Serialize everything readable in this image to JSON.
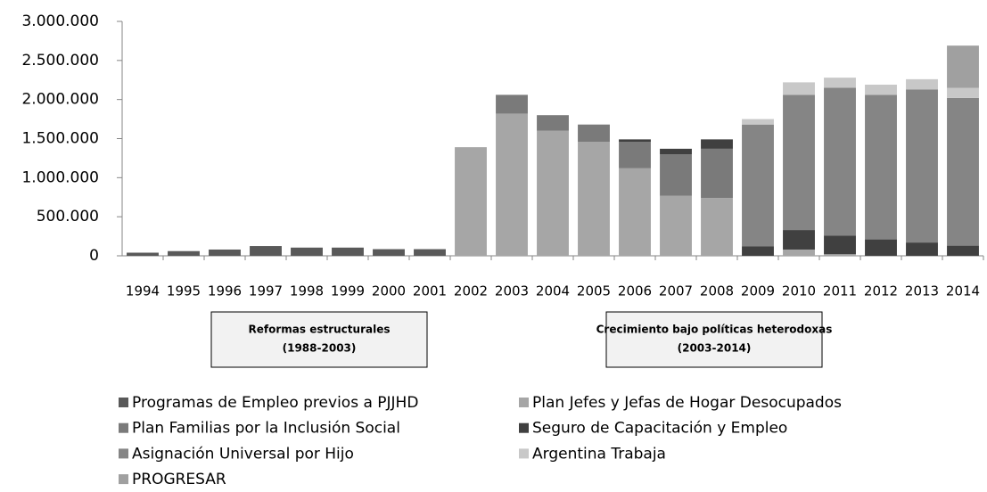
{
  "chart_data": {
    "type": "stacked-bar",
    "categories": [
      "1994",
      "1995",
      "1996",
      "1997",
      "1998",
      "1999",
      "2000",
      "2001",
      "2002",
      "2003",
      "2004",
      "2005",
      "2006",
      "2007",
      "2008",
      "2009",
      "2010",
      "2011",
      "2012",
      "2013",
      "2014"
    ],
    "series": [
      {
        "name": "Programas de Empleo previos a PJJHD",
        "color": "#595959",
        "values": [
          40000,
          60000,
          80000,
          125000,
          105000,
          105000,
          85000,
          85000,
          0,
          0,
          0,
          0,
          0,
          0,
          0,
          0,
          0,
          0,
          0,
          0,
          0
        ]
      },
      {
        "name": "Plan Jefes y Jefas de Hogar Desocupados",
        "color": "#a6a6a6",
        "values": [
          0,
          0,
          0,
          0,
          0,
          0,
          0,
          0,
          1390000,
          1820000,
          1600000,
          1460000,
          1120000,
          770000,
          740000,
          0,
          80000,
          20000,
          0,
          0,
          0
        ]
      },
      {
        "name": "Plan Familias por la Inclusión Social",
        "color": "#7a7a7a",
        "values": [
          0,
          0,
          0,
          0,
          0,
          0,
          0,
          0,
          0,
          240000,
          200000,
          220000,
          340000,
          530000,
          630000,
          0,
          0,
          0,
          0,
          0,
          0
        ]
      },
      {
        "name": "Seguro de Capacitación y Empleo",
        "color": "#404040",
        "values": [
          0,
          0,
          0,
          0,
          0,
          0,
          0,
          0,
          0,
          0,
          0,
          0,
          30000,
          70000,
          120000,
          120000,
          250000,
          240000,
          210000,
          170000,
          130000
        ]
      },
      {
        "name": "Asignación Universal por Hijo",
        "color": "#858585",
        "values": [
          0,
          0,
          0,
          0,
          0,
          0,
          0,
          0,
          0,
          0,
          0,
          0,
          0,
          0,
          0,
          1560000,
          1730000,
          1890000,
          1850000,
          1960000,
          1890000
        ]
      },
      {
        "name": "Argentina Trabaja",
        "color": "#c8c8c8",
        "values": [
          0,
          0,
          0,
          0,
          0,
          0,
          0,
          0,
          0,
          0,
          0,
          0,
          0,
          0,
          0,
          70000,
          160000,
          130000,
          130000,
          130000,
          130000
        ]
      },
      {
        "name": "PROGRESAR",
        "color": "#a0a0a0",
        "values": [
          0,
          0,
          0,
          0,
          0,
          0,
          0,
          0,
          0,
          0,
          0,
          0,
          0,
          0,
          0,
          0,
          0,
          0,
          0,
          0,
          540000
        ]
      }
    ],
    "ylim": [
      0,
      3000000
    ],
    "yticks": [
      0,
      {
        "value": 500000,
        "label": "500.000"
      },
      {
        "value": 1000000,
        "label": "1.000.000"
      },
      {
        "value": 1500000,
        "label": "1.500.000"
      },
      {
        "value": 2000000,
        "label": "2.000.000"
      },
      {
        "value": 2500000,
        "label": "2.500.000"
      },
      {
        "value": 3000000,
        "label": "3.000.000"
      }
    ],
    "annotations": [
      {
        "title": "Reformas estructurales",
        "subtitle": "(1988-2003)"
      },
      {
        "title": "Crecimiento bajo políticas  heterodoxas",
        "subtitle": "(2003-2014)"
      }
    ]
  }
}
